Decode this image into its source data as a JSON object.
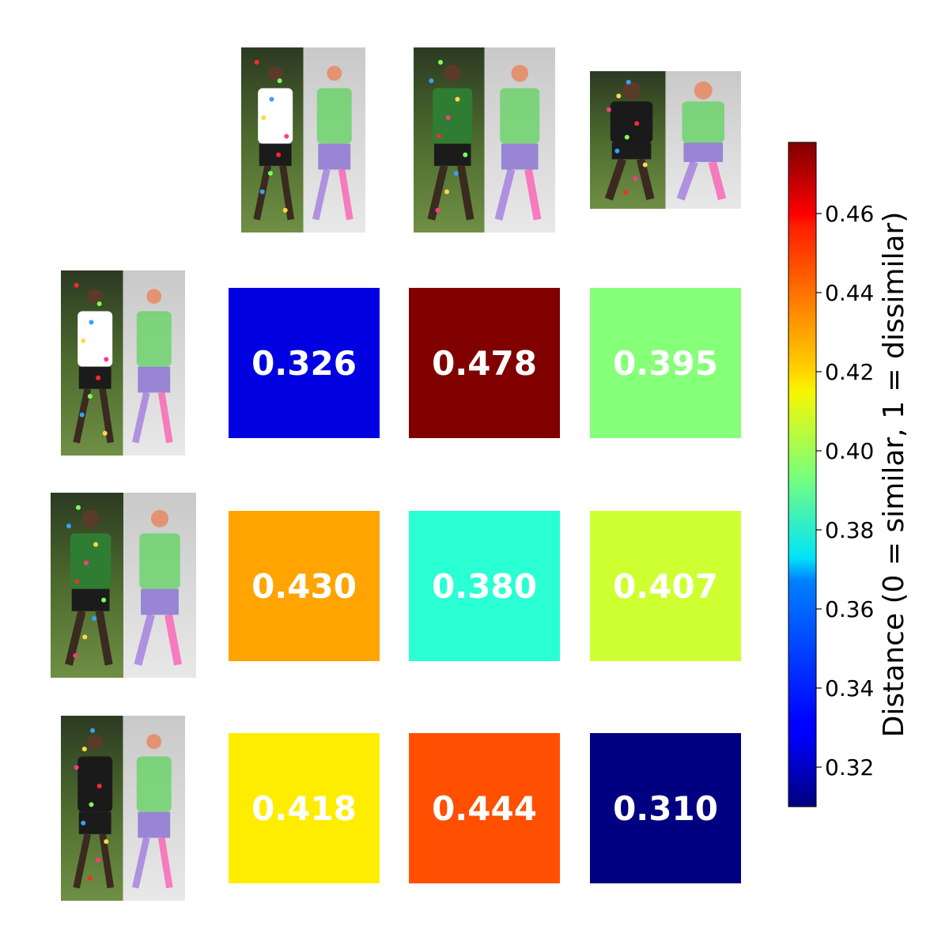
{
  "chart_data": {
    "type": "heatmap",
    "rows": 3,
    "cols": 3,
    "values": [
      [
        0.326,
        0.478,
        0.395
      ],
      [
        0.43,
        0.38,
        0.407
      ],
      [
        0.418,
        0.444,
        0.31
      ]
    ],
    "labels": [
      [
        "0.326",
        "0.478",
        "0.395"
      ],
      [
        "0.430",
        "0.380",
        "0.407"
      ],
      [
        "0.418",
        "0.444",
        "0.310"
      ]
    ],
    "colormap": "jet",
    "colorbar": {
      "label": "Distance (0 = similar, 1 = dissimilar)",
      "range": [
        0.31,
        0.478
      ],
      "ticks": [
        0.32,
        0.34,
        0.36,
        0.38,
        0.4,
        0.42,
        0.44,
        0.46
      ],
      "tick_labels": [
        "0.32",
        "0.34",
        "0.36",
        "0.38",
        "0.40",
        "0.42",
        "0.44",
        "0.46"
      ],
      "placement": "right"
    },
    "column_images": [
      "player-crop-with-pose-overlay",
      "player-crop-with-pose-overlay",
      "player-crop-with-pose-overlay"
    ],
    "row_images": [
      "player-crop-with-pose-overlay",
      "player-crop-with-pose-overlay",
      "player-crop-with-pose-overlay"
    ],
    "cell_label_color": "#ffffff",
    "grid": false
  }
}
